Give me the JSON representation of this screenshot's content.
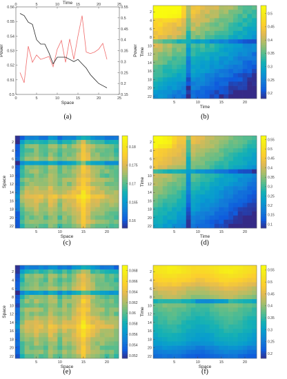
{
  "chart_data": [
    {
      "id": "a",
      "type": "line",
      "caption": "(a)",
      "xlabel_bottom": "Space",
      "xlabel_top": "Time",
      "ylabel_left": "Power",
      "ylabel_right": "Power",
      "xlim": [
        0,
        25
      ],
      "ylim_left": [
        0.5,
        0.56
      ],
      "ylim_right": [
        0.15,
        0.55
      ],
      "xticks": [
        0,
        5,
        10,
        15,
        20,
        25
      ],
      "yticks_left": [
        0.5,
        0.51,
        0.52,
        0.53,
        0.54,
        0.55,
        0.56
      ],
      "yticks_right": [
        0.15,
        0.2,
        0.25,
        0.3,
        0.35,
        0.4,
        0.45,
        0.5,
        0.55
      ],
      "left_axis_color": "#e8302f",
      "right_axis_color": "#222222",
      "series": [
        {
          "axis": "left",
          "color": "#f06a6a",
          "x": [
            1,
            2,
            3,
            4,
            5,
            6,
            7,
            8,
            9,
            10,
            11,
            12,
            13,
            14,
            15,
            16,
            17,
            18,
            19,
            20,
            21,
            22
          ],
          "y": [
            0.515,
            0.508,
            0.533,
            0.522,
            0.527,
            0.524,
            0.525,
            0.526,
            0.519,
            0.531,
            0.537,
            0.522,
            0.538,
            0.524,
            0.54,
            0.554,
            0.529,
            0.528,
            0.529,
            0.531,
            0.535,
            0.524
          ]
        },
        {
          "axis": "right",
          "color": "#222222",
          "x": [
            1,
            2,
            3,
            4,
            5,
            6,
            7,
            8,
            9,
            10,
            11,
            12,
            13,
            14,
            15,
            16,
            17,
            18,
            19,
            20,
            21,
            22
          ],
          "y": [
            0.52,
            0.51,
            0.48,
            0.47,
            0.4,
            0.38,
            0.38,
            0.34,
            0.29,
            0.32,
            0.32,
            0.32,
            0.31,
            0.3,
            0.31,
            0.29,
            0.27,
            0.24,
            0.22,
            0.2,
            0.19,
            0.18
          ]
        }
      ]
    },
    {
      "id": "b",
      "type": "heatmap",
      "caption": "(b)",
      "xlabel": "Time",
      "ylabel": "Time",
      "xticks": [
        5,
        10,
        15,
        20
      ],
      "yticks": [
        2,
        4,
        6,
        8,
        10,
        12,
        14,
        16,
        18,
        20,
        22
      ],
      "colorbar_ticks": [
        0.2,
        0.25,
        0.3,
        0.35,
        0.4,
        0.45,
        0.5
      ],
      "clim": [
        0.18,
        0.53
      ]
    },
    {
      "id": "c",
      "type": "heatmap",
      "caption": "(c)",
      "xlabel": "Space",
      "ylabel": "Space",
      "xticks": [
        5,
        10,
        15,
        20
      ],
      "yticks": [
        2,
        4,
        6,
        8,
        10,
        12,
        14,
        16,
        18,
        20,
        22
      ],
      "colorbar_ticks": [
        0.16,
        0.165,
        0.17,
        0.175,
        0.18
      ],
      "clim": [
        0.158,
        0.183
      ]
    },
    {
      "id": "d",
      "type": "heatmap",
      "caption": "(d)",
      "xlabel": "Time",
      "ylabel": "Time",
      "xticks": [
        5,
        10,
        15,
        20
      ],
      "yticks": [
        2,
        4,
        6,
        8,
        10,
        12,
        14,
        16,
        18,
        20,
        22
      ],
      "colorbar_ticks": [
        0.1,
        0.15,
        0.2,
        0.25,
        0.3,
        0.35,
        0.4,
        0.45,
        0.5,
        0.55
      ],
      "clim": [
        0.08,
        0.57
      ]
    },
    {
      "id": "e",
      "type": "heatmap",
      "caption": "(e)",
      "xlabel": "Space",
      "ylabel": "Space",
      "xticks": [
        5,
        10,
        15,
        20
      ],
      "yticks": [
        2,
        4,
        6,
        8,
        10,
        12,
        14,
        16,
        18,
        20,
        22
      ],
      "colorbar_ticks": [
        0.052,
        0.054,
        0.056,
        0.058,
        0.06,
        0.062,
        0.064,
        0.066,
        0.068
      ],
      "clim": [
        0.0515,
        0.069
      ]
    },
    {
      "id": "f",
      "type": "heatmap",
      "caption": "(f)",
      "xlabel": "Space",
      "ylabel": "Time",
      "xticks": [
        5,
        10,
        15,
        20
      ],
      "yticks": [
        2,
        4,
        6,
        8,
        10,
        12,
        14,
        16,
        18,
        20,
        22
      ],
      "colorbar_ticks": [
        0.2,
        0.25,
        0.3,
        0.35,
        0.4,
        0.45,
        0.5,
        0.55
      ],
      "clim": [
        0.18,
        0.57
      ]
    }
  ]
}
